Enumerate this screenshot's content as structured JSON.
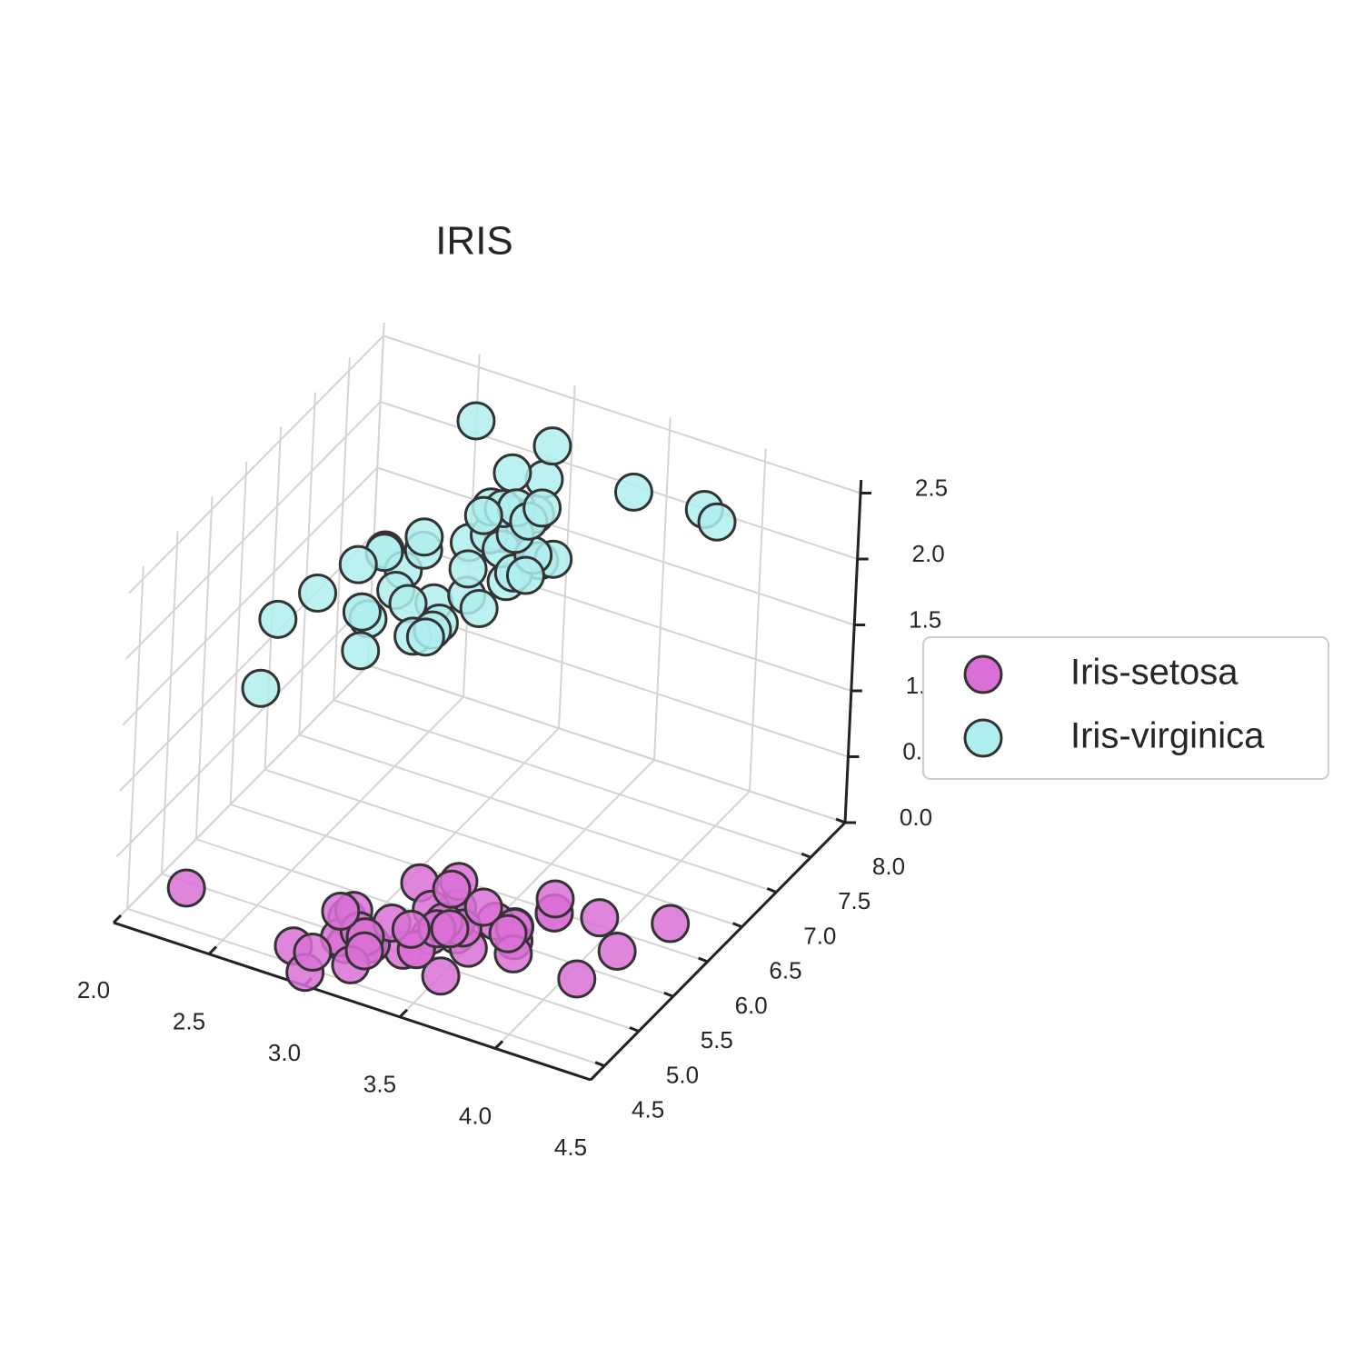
{
  "chart_data": {
    "type": "scatter3d",
    "title": "IRIS",
    "xlim": [
      2.0,
      4.5
    ],
    "ylim": [
      4.3,
      8.0
    ],
    "zlim": [
      0,
      2.6
    ],
    "xticks": [
      {
        "value": 2,
        "label": "2.0"
      },
      2.5,
      {
        "value": 3,
        "label": "3.0"
      },
      3.5,
      {
        "value": 4,
        "label": "4.0"
      },
      4.5
    ],
    "yticks": [
      4.5,
      {
        "value": 5,
        "label": "5.0"
      },
      5.5,
      {
        "value": 6,
        "label": "6.0"
      },
      6.5,
      {
        "value": 7,
        "label": "7.0"
      },
      7.5,
      {
        "value": 8,
        "label": "8.0"
      }
    ],
    "zticks": [
      {
        "value": 0,
        "label": "0.0"
      },
      0.5,
      {
        "value": 1,
        "label": "1.0"
      },
      1.5,
      {
        "value": 2,
        "label": "2.0"
      },
      2.5
    ],
    "grid": true,
    "legend": "center right",
    "series": [
      {
        "name": "Iris-setosa",
        "color": "#da70d6",
        "x": [
          3.5,
          3.0,
          3.2,
          3.1,
          3.6,
          3.9,
          3.4,
          3.4,
          2.9,
          3.1,
          3.7,
          3.4,
          3.0,
          3.0,
          4.0,
          4.4,
          3.9,
          3.5,
          3.8,
          3.8,
          3.4,
          3.7,
          3.6,
          3.3,
          3.4,
          3.0,
          3.4,
          3.5,
          3.4,
          3.2,
          3.1,
          3.4,
          4.1,
          4.2,
          3.1,
          3.2,
          3.5,
          3.1,
          3.0,
          3.4,
          3.5,
          2.3,
          3.2,
          3.5,
          3.8,
          3.0,
          3.8,
          3.2,
          3.7,
          3.3
        ],
        "y": [
          5.1,
          4.9,
          4.7,
          4.6,
          5.0,
          5.4,
          4.6,
          5.0,
          4.4,
          4.9,
          5.4,
          4.8,
          4.8,
          4.3,
          5.8,
          5.7,
          5.4,
          5.1,
          5.7,
          5.1,
          5.4,
          5.1,
          4.6,
          5.1,
          4.8,
          5.0,
          5.0,
          5.2,
          5.2,
          4.7,
          4.8,
          5.4,
          5.2,
          5.5,
          4.9,
          5.0,
          5.5,
          4.9,
          4.4,
          5.1,
          5.0,
          4.5,
          4.4,
          5.0,
          5.1,
          4.8,
          5.1,
          4.6,
          5.3,
          5.0
        ],
        "z": [
          0.2,
          0.2,
          0.2,
          0.2,
          0.2,
          0.4,
          0.3,
          0.2,
          0.2,
          0.1,
          0.2,
          0.2,
          0.1,
          0.1,
          0.2,
          0.4,
          0.4,
          0.3,
          0.3,
          0.3,
          0.2,
          0.4,
          0.2,
          0.5,
          0.2,
          0.2,
          0.4,
          0.2,
          0.2,
          0.2,
          0.2,
          0.4,
          0.1,
          0.2,
          0.1,
          0.2,
          0.2,
          0.1,
          0.2,
          0.2,
          0.3,
          0.3,
          0.2,
          0.6,
          0.4,
          0.3,
          0.2,
          0.2,
          0.2,
          0.2
        ]
      },
      {
        "name": "Iris-virginica",
        "color": "#afeeee",
        "x": [
          3.3,
          2.7,
          3.0,
          2.9,
          3.0,
          3.0,
          2.5,
          2.9,
          2.5,
          3.6,
          3.2,
          2.7,
          3.0,
          2.5,
          2.8,
          3.2,
          3.0,
          3.8,
          2.6,
          2.2,
          3.2,
          2.8,
          2.8,
          2.7,
          3.3,
          3.2,
          2.8,
          3.0,
          2.8,
          3.0,
          2.8,
          3.8,
          2.8,
          2.8,
          2.6,
          3.0,
          3.4,
          3.1,
          3.0,
          3.1,
          3.1,
          3.1,
          2.7,
          3.2,
          3.3,
          3.0,
          2.5,
          3.0,
          3.4,
          3.0
        ],
        "y": [
          6.3,
          5.8,
          7.1,
          6.3,
          6.5,
          7.6,
          4.9,
          7.3,
          6.7,
          7.2,
          6.5,
          6.4,
          6.8,
          5.7,
          5.8,
          6.4,
          6.5,
          7.7,
          7.7,
          6.0,
          6.9,
          5.6,
          7.7,
          6.3,
          6.7,
          7.2,
          6.2,
          6.1,
          6.4,
          7.2,
          7.4,
          7.9,
          6.4,
          6.3,
          6.1,
          7.7,
          6.3,
          6.4,
          6.0,
          6.9,
          6.7,
          6.9,
          5.8,
          6.8,
          6.7,
          6.7,
          6.3,
          6.5,
          6.2,
          5.9
        ],
        "z": [
          2.5,
          1.9,
          2.1,
          1.8,
          2.2,
          2.1,
          1.7,
          1.8,
          1.8,
          2.5,
          2.0,
          1.9,
          2.1,
          2.0,
          2.4,
          2.3,
          1.8,
          2.2,
          2.3,
          1.5,
          2.3,
          2.0,
          2.0,
          1.8,
          2.1,
          1.8,
          1.8,
          1.8,
          2.1,
          1.6,
          1.9,
          2.0,
          2.2,
          1.5,
          1.4,
          2.3,
          2.4,
          1.8,
          1.8,
          2.1,
          2.4,
          2.3,
          1.9,
          2.3,
          2.5,
          2.3,
          1.9,
          2.0,
          2.3,
          1.8
        ]
      }
    ]
  }
}
